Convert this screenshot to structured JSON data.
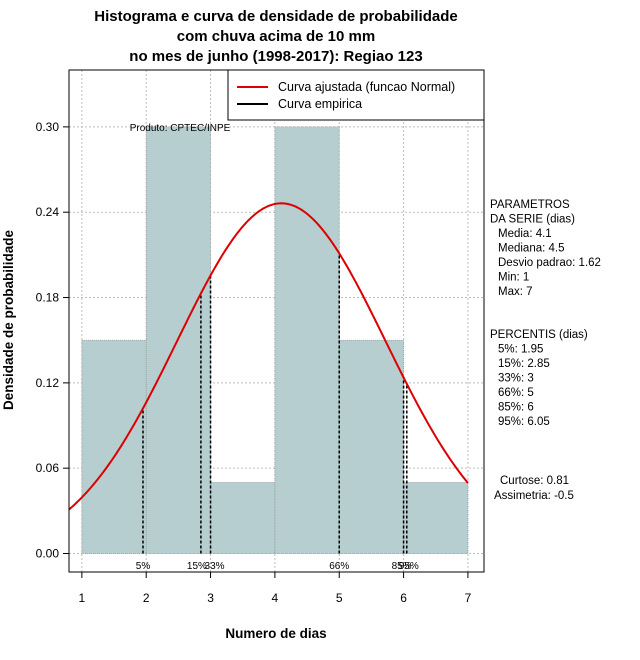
{
  "chart_data": {
    "type": "bar",
    "title_lines": [
      "Histograma e curva de densidade de probabilidade",
      "com chuva acima de 10 mm",
      "no mes de junho (1998-2017): Regiao 123"
    ],
    "xlabel": "Numero de dias",
    "ylabel": "Densidade de probabilidade",
    "xlim": [
      0.8,
      7.25
    ],
    "ylim": [
      -0.013,
      0.34
    ],
    "xticks": [
      1,
      2,
      3,
      4,
      5,
      6,
      7
    ],
    "xtick_labels": [
      "1",
      "2",
      "3",
      "4",
      "5",
      "6",
      "7"
    ],
    "yticks": [
      0.0,
      0.06,
      0.12,
      0.18,
      0.24,
      0.3
    ],
    "ytick_labels": [
      "0.00",
      "0.06",
      "0.12",
      "0.18",
      "0.24",
      "0.30"
    ],
    "bins": [
      {
        "x0": 1,
        "x1": 2,
        "value": 0.15
      },
      {
        "x0": 2,
        "x1": 3,
        "value": 0.3
      },
      {
        "x0": 3,
        "x1": 4,
        "value": 0.05
      },
      {
        "x0": 4,
        "x1": 5,
        "value": 0.3
      },
      {
        "x0": 5,
        "x1": 6,
        "value": 0.15
      },
      {
        "x0": 6,
        "x1": 7,
        "value": 0.05
      }
    ],
    "bar_color": "#b6cecf",
    "curve": {
      "name": "Curva ajustada (funcao Normal)",
      "color": "#dd0000",
      "mean": 4.1,
      "sd": 1.62,
      "x_range": [
        0.8,
        7
      ]
    },
    "empirical": {
      "name": "Curva empirica",
      "color": "#000000"
    },
    "percentile_lines": [
      {
        "label": "5%",
        "x": 1.95
      },
      {
        "label": "15%",
        "x": 2.85
      },
      {
        "label": "33%",
        "x": 3.0
      },
      {
        "label": "66%",
        "x": 5.0
      },
      {
        "label": "85%",
        "x": 6.0
      },
      {
        "label": "95%",
        "x": 6.05
      }
    ],
    "product_label": "Produto: CPTEC/INPE",
    "parameters": {
      "header": [
        "PARAMETROS",
        "DA SERIE (dias)"
      ],
      "items": [
        "Media: 4.1",
        "Mediana: 4.5",
        "Desvio padrao: 1.62",
        "Min: 1",
        "Max: 7"
      ]
    },
    "percentiles": {
      "header": "PERCENTIS (dias)",
      "items": [
        "5%: 1.95",
        "15%: 2.85",
        "33%: 3",
        "66%: 5",
        "85%: 6",
        "95%: 6.05"
      ]
    },
    "shape": {
      "items": [
        "Curtose: 0.81",
        "Assimetria: -0.5"
      ]
    },
    "grid": true
  }
}
